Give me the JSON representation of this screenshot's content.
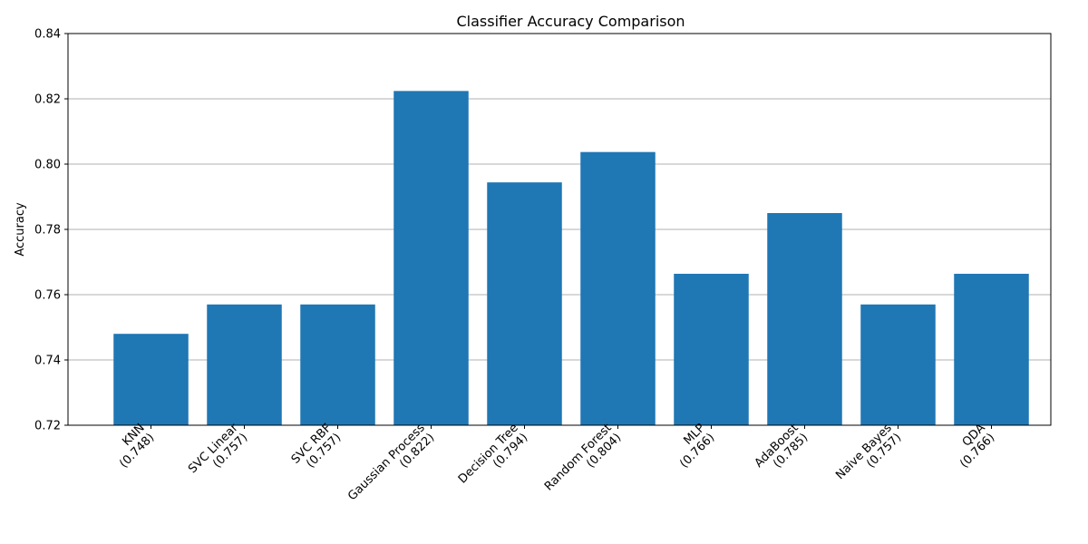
{
  "chart_data": {
    "type": "bar",
    "title": "Classifier Accuracy Comparison",
    "xlabel": "",
    "ylabel": "Accuracy",
    "categories": [
      "KNN\n(0.748)",
      "SVC Linear\n(0.757)",
      "SVC RBF\n(0.757)",
      "Gaussian Process\n(0.822)",
      "Decision Tree\n(0.794)",
      "Random Forest\n(0.804)",
      "MLP\n(0.766)",
      "AdaBoost\n(0.785)",
      "Naive Bayes\n(0.757)",
      "QDA\n(0.766)"
    ],
    "values": [
      0.748,
      0.757,
      0.757,
      0.8224,
      0.7944,
      0.8037,
      0.7664,
      0.785,
      0.757,
      0.7664
    ],
    "ylim": [
      0.72,
      0.84
    ],
    "yticks": [
      "0.72",
      "0.74",
      "0.76",
      "0.78",
      "0.80",
      "0.82",
      "0.84"
    ],
    "grid": "y",
    "bar_color": "#1f77b4"
  }
}
